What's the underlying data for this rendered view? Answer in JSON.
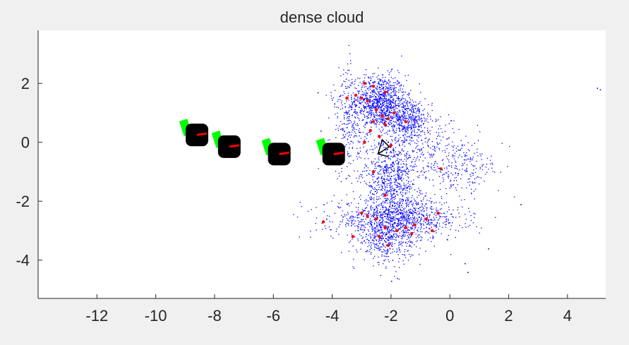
{
  "window": {
    "background": "#f0f0f0"
  },
  "chart_data": {
    "type": "scatter",
    "title": "dense cloud",
    "xlabel": "",
    "ylabel": "",
    "xlim": [
      -14,
      5.3
    ],
    "ylim": [
      -5.3,
      3.8
    ],
    "xticks": [
      -12,
      -10,
      -8,
      -6,
      -4,
      -2,
      0,
      2,
      4
    ],
    "yticks": [
      2,
      0,
      -2,
      -4
    ],
    "grid": false,
    "legend": "none",
    "colors": {
      "dense_points": "#0000ff",
      "sparse_points": "#ff0000",
      "camera_frustum": "#000000",
      "camera_tag": "#00ff00",
      "axes_bg": "#ffffff",
      "axis_line": "#262626"
    },
    "series": [
      {
        "kind": "dense-points",
        "color": "#0000ff",
        "clusters": [
          {
            "cx": -2.4,
            "cy": 1.4,
            "sx": 0.45,
            "sy": 0.45,
            "count": 900
          },
          {
            "cx": -1.5,
            "cy": 0.8,
            "sx": 0.45,
            "sy": 0.35,
            "count": 500
          },
          {
            "cx": -2.0,
            "cy": -1.2,
            "sx": 0.45,
            "sy": 0.7,
            "count": 700
          },
          {
            "cx": -1.8,
            "cy": -2.6,
            "sx": 1.1,
            "sy": 0.35,
            "count": 1100
          },
          {
            "cx": -2.2,
            "cy": -3.4,
            "sx": 0.45,
            "sy": 0.35,
            "count": 300
          },
          {
            "cx": -3.4,
            "cy": 0.6,
            "sx": 0.3,
            "sy": 1.0,
            "count": 300
          },
          {
            "cx": -0.6,
            "cy": -0.3,
            "sx": 0.8,
            "sy": 0.5,
            "count": 250
          },
          {
            "cx": 0.5,
            "cy": -1.0,
            "sx": 0.6,
            "sy": 0.4,
            "count": 150
          }
        ],
        "outliers": [
          {
            "x": -4.5,
            "y": 1.7
          },
          {
            "x": -4.4,
            "y": 0.4
          },
          {
            "x": 5.1,
            "y": 1.8
          },
          {
            "x": 5.0,
            "y": 1.85
          },
          {
            "x": 2.4,
            "y": -2.1
          },
          {
            "x": 0.6,
            "y": -4.4
          },
          {
            "x": -4.3,
            "y": -2.1
          },
          {
            "x": 1.3,
            "y": -3.6
          },
          {
            "x": 0.5,
            "y": -4.1
          },
          {
            "x": -1.8,
            "y": -4.6
          },
          {
            "x": -2.0,
            "y": -4.7
          }
        ]
      },
      {
        "kind": "sparse-points",
        "color": "#ff0000",
        "points": [
          {
            "x": -3.0,
            "y": 1.5
          },
          {
            "x": -2.8,
            "y": 1.4
          },
          {
            "x": -2.5,
            "y": 1.1
          },
          {
            "x": -2.3,
            "y": 0.9
          },
          {
            "x": -2.1,
            "y": 0.8
          },
          {
            "x": -2.6,
            "y": 0.7
          },
          {
            "x": -2.2,
            "y": 0.6
          },
          {
            "x": -1.9,
            "y": 1.0
          },
          {
            "x": -1.5,
            "y": 0.7
          },
          {
            "x": -2.7,
            "y": 0.4
          },
          {
            "x": -2.4,
            "y": 0.2
          },
          {
            "x": -2.9,
            "y": 0.0
          },
          {
            "x": -2.2,
            "y": 1.7
          },
          {
            "x": -2.6,
            "y": 1.9
          },
          {
            "x": -3.2,
            "y": 1.6
          },
          {
            "x": -2.0,
            "y": -0.1
          },
          {
            "x": -2.6,
            "y": -1.0
          },
          {
            "x": -2.2,
            "y": -1.8
          },
          {
            "x": -3.0,
            "y": -2.4
          },
          {
            "x": -2.8,
            "y": -2.5
          },
          {
            "x": -2.5,
            "y": -2.6
          },
          {
            "x": -2.2,
            "y": -2.9
          },
          {
            "x": -1.8,
            "y": -3.0
          },
          {
            "x": -1.5,
            "y": -2.9
          },
          {
            "x": -1.2,
            "y": -2.8
          },
          {
            "x": -0.8,
            "y": -2.6
          },
          {
            "x": -0.6,
            "y": -3.0
          },
          {
            "x": -0.4,
            "y": -2.4
          },
          {
            "x": -2.4,
            "y": -3.2
          },
          {
            "x": -2.1,
            "y": -3.5
          },
          {
            "x": -3.3,
            "y": -3.2
          },
          {
            "x": -1.3,
            "y": -3.1
          },
          {
            "x": -4.3,
            "y": -2.7
          },
          {
            "x": -0.3,
            "y": -0.9
          },
          {
            "x": -2.9,
            "y": 2.0
          },
          {
            "x": -3.5,
            "y": 1.5
          }
        ]
      },
      {
        "kind": "cameras",
        "color": "#000000",
        "tag_color": "#00ff00",
        "positions": [
          {
            "x": -8.6,
            "y": 0.25
          },
          {
            "x": -7.5,
            "y": -0.15
          },
          {
            "x": -5.8,
            "y": -0.4
          },
          {
            "x": -3.95,
            "y": -0.4
          }
        ]
      }
    ]
  }
}
